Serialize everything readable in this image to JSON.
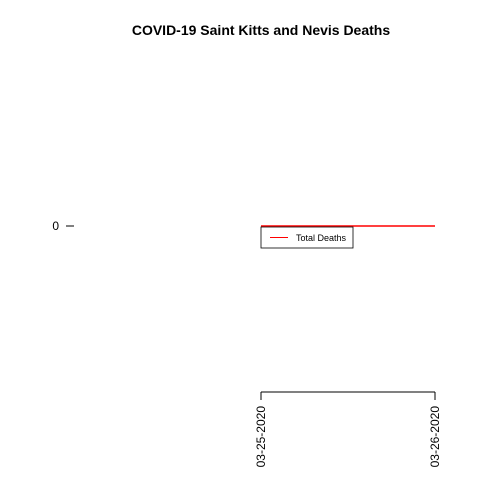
{
  "chart_data": {
    "type": "line",
    "title": "COVID-19 Saint Kitts and Nevis Deaths",
    "x": [
      "03-25-2020",
      "03-26-2020"
    ],
    "series": [
      {
        "name": "Total Deaths",
        "values": [
          0,
          0
        ],
        "color": "#ff0000"
      }
    ],
    "y_ticks": [
      "0"
    ],
    "ylim": [
      -1,
      1
    ],
    "grid": false,
    "legend_position": "below-line-center"
  }
}
